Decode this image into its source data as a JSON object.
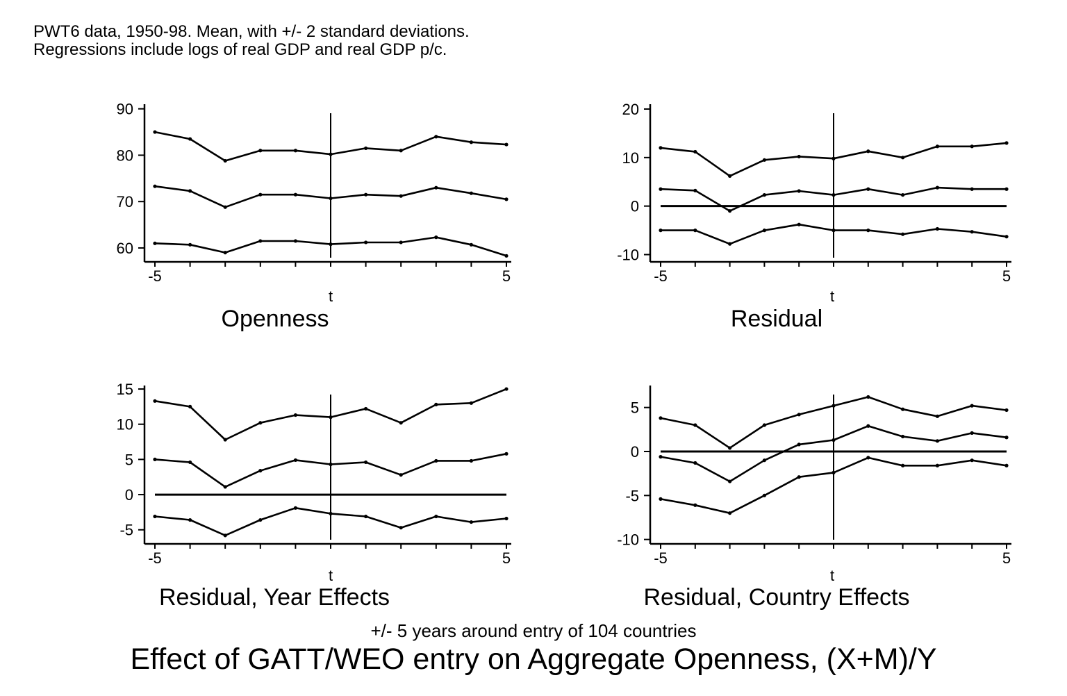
{
  "notes": {
    "line1": "PWT6 data, 1950-98.  Mean, with +/- 2 standard deviations.",
    "line2": "Regressions include logs of real GDP and real GDP p/c."
  },
  "figure": {
    "x_caption": "+/- 5 years around entry of 104 countries",
    "title": "Effect of GATT/WEO entry on Aggregate Openness, (X+M)/Y"
  },
  "chart_data": [
    {
      "type": "line",
      "title": "Openness",
      "xlabel": "t",
      "ylabel": "",
      "x": [
        -5,
        -4,
        -3,
        -2,
        -1,
        0,
        1,
        2,
        3,
        4,
        5
      ],
      "xlim": [
        -5,
        5
      ],
      "xticks": [
        -5,
        5
      ],
      "ylim": [
        57,
        91
      ],
      "yticks": [
        60,
        70,
        80,
        90
      ],
      "vline": 0,
      "hline": null,
      "series": [
        {
          "role": "upper",
          "values": [
            85,
            83.5,
            78.8,
            81,
            81,
            80.2,
            81.5,
            81,
            84,
            82.8,
            82.3
          ]
        },
        {
          "role": "mean",
          "values": [
            73.3,
            72.3,
            68.8,
            71.5,
            71.5,
            70.7,
            71.5,
            71.2,
            73,
            71.8,
            70.5
          ]
        },
        {
          "role": "lower",
          "values": [
            61,
            60.7,
            59,
            61.5,
            61.5,
            60.8,
            61.2,
            61.2,
            62.3,
            60.7,
            58.3
          ]
        }
      ]
    },
    {
      "type": "line",
      "title": "Residual",
      "xlabel": "t",
      "ylabel": "",
      "x": [
        -5,
        -4,
        -3,
        -2,
        -1,
        0,
        1,
        2,
        3,
        4,
        5
      ],
      "xlim": [
        -5,
        5
      ],
      "xticks": [
        -5,
        5
      ],
      "ylim": [
        -11.5,
        21
      ],
      "yticks": [
        -10,
        0,
        10,
        20
      ],
      "vline": 0,
      "hline": 0,
      "series": [
        {
          "role": "upper",
          "values": [
            12,
            11.2,
            6.2,
            9.5,
            10.2,
            9.8,
            11.3,
            10,
            12.3,
            12.3,
            13
          ]
        },
        {
          "role": "mean",
          "values": [
            3.5,
            3.2,
            -1,
            2.3,
            3.1,
            2.3,
            3.5,
            2.3,
            3.8,
            3.5,
            3.5
          ]
        },
        {
          "role": "lower",
          "values": [
            -5,
            -5,
            -7.8,
            -5,
            -3.8,
            -5,
            -5,
            -5.8,
            -4.7,
            -5.3,
            -6.3
          ]
        }
      ]
    },
    {
      "type": "line",
      "title": "Residual, Year Effects",
      "xlabel": "t",
      "ylabel": "",
      "x": [
        -5,
        -4,
        -3,
        -2,
        -1,
        0,
        1,
        2,
        3,
        4,
        5
      ],
      "xlim": [
        -5,
        5
      ],
      "xticks": [
        -5,
        5
      ],
      "ylim": [
        -7,
        15.5
      ],
      "yticks": [
        -5,
        0,
        5,
        10,
        15
      ],
      "vline": 0,
      "hline": 0,
      "series": [
        {
          "role": "upper",
          "values": [
            13.3,
            12.5,
            7.8,
            10.2,
            11.3,
            11,
            12.2,
            10.2,
            12.8,
            13,
            15
          ]
        },
        {
          "role": "mean",
          "values": [
            5,
            4.6,
            1.1,
            3.4,
            4.9,
            4.3,
            4.6,
            2.8,
            4.8,
            4.8,
            5.8
          ]
        },
        {
          "role": "lower",
          "values": [
            -3.1,
            -3.6,
            -5.8,
            -3.6,
            -1.9,
            -2.7,
            -3.1,
            -4.7,
            -3.1,
            -3.9,
            -3.4
          ]
        }
      ]
    },
    {
      "type": "line",
      "title": "Residual, Country Effects",
      "xlabel": "t",
      "ylabel": "",
      "x": [
        -5,
        -4,
        -3,
        -2,
        -1,
        0,
        1,
        2,
        3,
        4,
        5
      ],
      "xlim": [
        -5,
        5
      ],
      "xticks": [
        -5,
        5
      ],
      "ylim": [
        -10.5,
        7.5
      ],
      "yticks": [
        -10,
        -5,
        0,
        5
      ],
      "vline": 0,
      "hline": 0,
      "series": [
        {
          "role": "upper",
          "values": [
            3.8,
            3,
            0.4,
            3,
            4.2,
            5.2,
            6.2,
            4.8,
            4,
            5.2,
            4.7
          ]
        },
        {
          "role": "mean",
          "values": [
            -0.6,
            -1.3,
            -3.4,
            -1,
            0.8,
            1.3,
            2.9,
            1.7,
            1.2,
            2.1,
            1.6
          ]
        },
        {
          "role": "lower",
          "values": [
            -5.4,
            -6.1,
            -7,
            -5,
            -2.9,
            -2.4,
            -0.7,
            -1.6,
            -1.6,
            -1,
            -1.6
          ]
        }
      ]
    }
  ]
}
